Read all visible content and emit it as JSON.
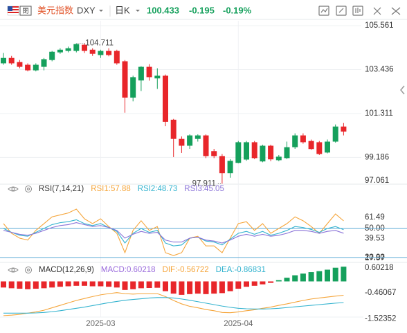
{
  "header": {
    "name": "美元指数",
    "symbol": "DXY",
    "period": "日K",
    "price": "100.433",
    "change": "-0.195",
    "change_pct": "-0.19%"
  },
  "chart_data": [
    {
      "type": "candlestick",
      "up_color": "#15a05c",
      "down_color": "#e8262a",
      "grid": true,
      "categories": [
        null,
        null,
        null,
        null,
        null,
        null,
        null,
        null,
        null,
        null,
        null,
        null,
        "2025-03",
        null,
        null,
        null,
        null,
        null,
        null,
        null,
        null,
        null,
        null,
        null,
        null,
        null,
        null,
        null,
        null,
        "2025-04",
        null,
        null,
        null,
        null,
        null,
        null,
        null,
        null,
        null,
        null,
        null,
        null,
        null
      ],
      "open": [
        103.74,
        104.0,
        103.8,
        103.67,
        103.4,
        103.57,
        103.9,
        104.27,
        104.34,
        104.34,
        104.64,
        104.4,
        104.14,
        104.34,
        104.34,
        103.84,
        102.08,
        102.91,
        103.57,
        103.01,
        103.14,
        101.01,
        100.08,
        99.75,
        100.08,
        100.25,
        99.49,
        99.25,
        98.42,
        98.92,
        99.08,
        99.92,
        98.99,
        99.75,
        99.05,
        99.15,
        99.68,
        100.25,
        99.98,
        99.92,
        99.42,
        99.95,
        100.68
      ],
      "high": [
        104.24,
        104.1,
        103.9,
        103.74,
        103.74,
        104.0,
        104.34,
        104.47,
        104.55,
        104.711,
        104.7,
        104.47,
        104.4,
        104.47,
        104.4,
        103.9,
        103.14,
        103.6,
        103.7,
        103.5,
        103.2,
        101.05,
        100.2,
        100.3,
        100.3,
        100.3,
        99.6,
        99.35,
        99.1,
        99.98,
        99.98,
        99.98,
        99.8,
        99.8,
        99.3,
        99.95,
        100.35,
        100.35,
        100.05,
        99.98,
        100.05,
        100.78,
        100.85
      ],
      "low": [
        103.67,
        103.67,
        103.5,
        103.35,
        103.35,
        103.4,
        103.84,
        104.2,
        104.27,
        104.27,
        104.24,
        104.1,
        104.0,
        104.08,
        103.67,
        101.35,
        101.9,
        102.4,
        102.9,
        102.5,
        100.7,
        99.2,
        99.4,
        99.6,
        99.95,
        99.15,
        99.15,
        97.911,
        98.2,
        98.9,
        99.02,
        99.1,
        98.95,
        99.0,
        99.0,
        99.1,
        99.6,
        99.85,
        99.55,
        99.3,
        99.38,
        99.9,
        100.25
      ],
      "close": [
        104.0,
        103.74,
        103.57,
        103.4,
        103.67,
        103.94,
        104.3,
        104.4,
        104.47,
        104.67,
        104.34,
        104.2,
        104.34,
        104.14,
        103.74,
        102.08,
        103.07,
        103.57,
        103.07,
        103.14,
        100.91,
        100.08,
        99.75,
        100.25,
        100.25,
        99.25,
        99.25,
        98.42,
        99.02,
        99.92,
        99.92,
        99.15,
        99.75,
        99.09,
        99.22,
        99.68,
        100.25,
        99.92,
        99.59,
        99.35,
        99.95,
        100.68,
        100.433
      ],
      "ylim": [
        97.89,
        105.8
      ],
      "yticks": [
        105.561,
        103.436,
        101.311,
        99.186,
        97.061
      ]
    },
    {
      "type": "line",
      "title": "RSI(7,14,21)",
      "ylim": [
        15.7,
        78.6
      ],
      "yticks": [
        61.49,
        {
          "value": 50,
          "label": "50.00"
        },
        39.53,
        17.57,
        {
          "value": 20,
          "label": "20.00"
        }
      ],
      "reference_lines": [
        50,
        20
      ],
      "reference_color": "#5aa9d6",
      "series": [
        {
          "name": "RSI1:57.88",
          "color": "#f5a53a",
          "values": [
            55,
            45,
            40,
            38,
            48,
            55,
            62,
            64,
            66,
            70,
            60,
            55,
            60,
            52,
            45,
            25,
            48,
            58,
            48,
            52,
            25,
            22,
            25,
            40,
            42,
            32,
            32,
            25,
            40,
            55,
            57,
            48,
            55,
            45,
            50,
            55,
            62,
            58,
            52,
            45,
            55,
            65,
            57.88
          ]
        },
        {
          "name": "RSI2:48.73",
          "color": "#33b3cf",
          "values": [
            50,
            46,
            43,
            42,
            46,
            50,
            54,
            56,
            57,
            59,
            55,
            53,
            55,
            51,
            47,
            35,
            45,
            50,
            46,
            48,
            35,
            32,
            33,
            40,
            41,
            37,
            36,
            33,
            39,
            45,
            47,
            44,
            47,
            43,
            45,
            48,
            52,
            51,
            49,
            46,
            50,
            52,
            48.73
          ]
        },
        {
          "name": "RSI3:45.05",
          "color": "#8a73d8",
          "values": [
            48,
            46,
            44,
            43,
            45,
            48,
            51,
            53,
            54,
            56,
            54,
            52,
            53,
            51,
            48,
            40,
            44,
            47,
            45,
            46,
            38,
            36,
            36,
            40,
            41,
            38,
            37,
            35,
            38,
            42,
            44,
            42,
            44,
            42,
            43,
            45,
            48,
            48,
            47,
            45,
            47,
            48,
            45.05
          ]
        }
      ]
    },
    {
      "type": "combo",
      "title": "MACD(12,26,9)",
      "ylim": [
        -1.8,
        0.75
      ],
      "yticks": [
        0.60218,
        -0.46067,
        -1.52352
      ],
      "series": [
        {
          "name": "MACD:0.60218",
          "type": "bar",
          "color": "#9a6bdc",
          "up_color": "#15a05c",
          "down_color": "#e8262a",
          "values": [
            -0.25,
            -0.28,
            -0.3,
            -0.32,
            -0.3,
            -0.28,
            -0.25,
            -0.22,
            -0.2,
            -0.18,
            -0.18,
            -0.2,
            -0.2,
            -0.22,
            -0.25,
            -0.35,
            -0.32,
            -0.28,
            -0.27,
            -0.26,
            -0.4,
            -0.5,
            -0.55,
            -0.52,
            -0.5,
            -0.52,
            -0.5,
            -0.48,
            -0.4,
            -0.3,
            -0.22,
            -0.18,
            -0.12,
            -0.06,
            0.05,
            0.15,
            0.25,
            0.32,
            0.38,
            0.42,
            0.48,
            0.56,
            0.60218
          ]
        },
        {
          "name": "DIF:-0.56722",
          "type": "line",
          "color": "#f5a53a",
          "values": [
            -1.4,
            -1.38,
            -1.35,
            -1.3,
            -1.25,
            -1.18,
            -1.08,
            -0.98,
            -0.88,
            -0.78,
            -0.7,
            -0.62,
            -0.55,
            -0.5,
            -0.46,
            -0.5,
            -0.52,
            -0.5,
            -0.5,
            -0.5,
            -0.62,
            -0.78,
            -0.92,
            -1.02,
            -1.08,
            -1.15,
            -1.2,
            -1.27,
            -1.28,
            -1.25,
            -1.2,
            -1.16,
            -1.1,
            -1.05,
            -0.98,
            -0.92,
            -0.85,
            -0.78,
            -0.72,
            -0.68,
            -0.64,
            -0.6,
            -0.56722
          ]
        },
        {
          "name": "DEA:-0.86831",
          "type": "line",
          "color": "#33b3cf",
          "values": [
            -1.3,
            -1.3,
            -1.3,
            -1.3,
            -1.29,
            -1.27,
            -1.24,
            -1.2,
            -1.15,
            -1.1,
            -1.05,
            -0.99,
            -0.93,
            -0.87,
            -0.82,
            -0.77,
            -0.74,
            -0.71,
            -0.68,
            -0.66,
            -0.66,
            -0.68,
            -0.72,
            -0.77,
            -0.83,
            -0.89,
            -0.95,
            -1.01,
            -1.06,
            -1.1,
            -1.12,
            -1.13,
            -1.13,
            -1.12,
            -1.1,
            -1.07,
            -1.04,
            -1.01,
            -0.98,
            -0.95,
            -0.92,
            -0.89,
            -0.86831
          ]
        }
      ]
    }
  ]
}
